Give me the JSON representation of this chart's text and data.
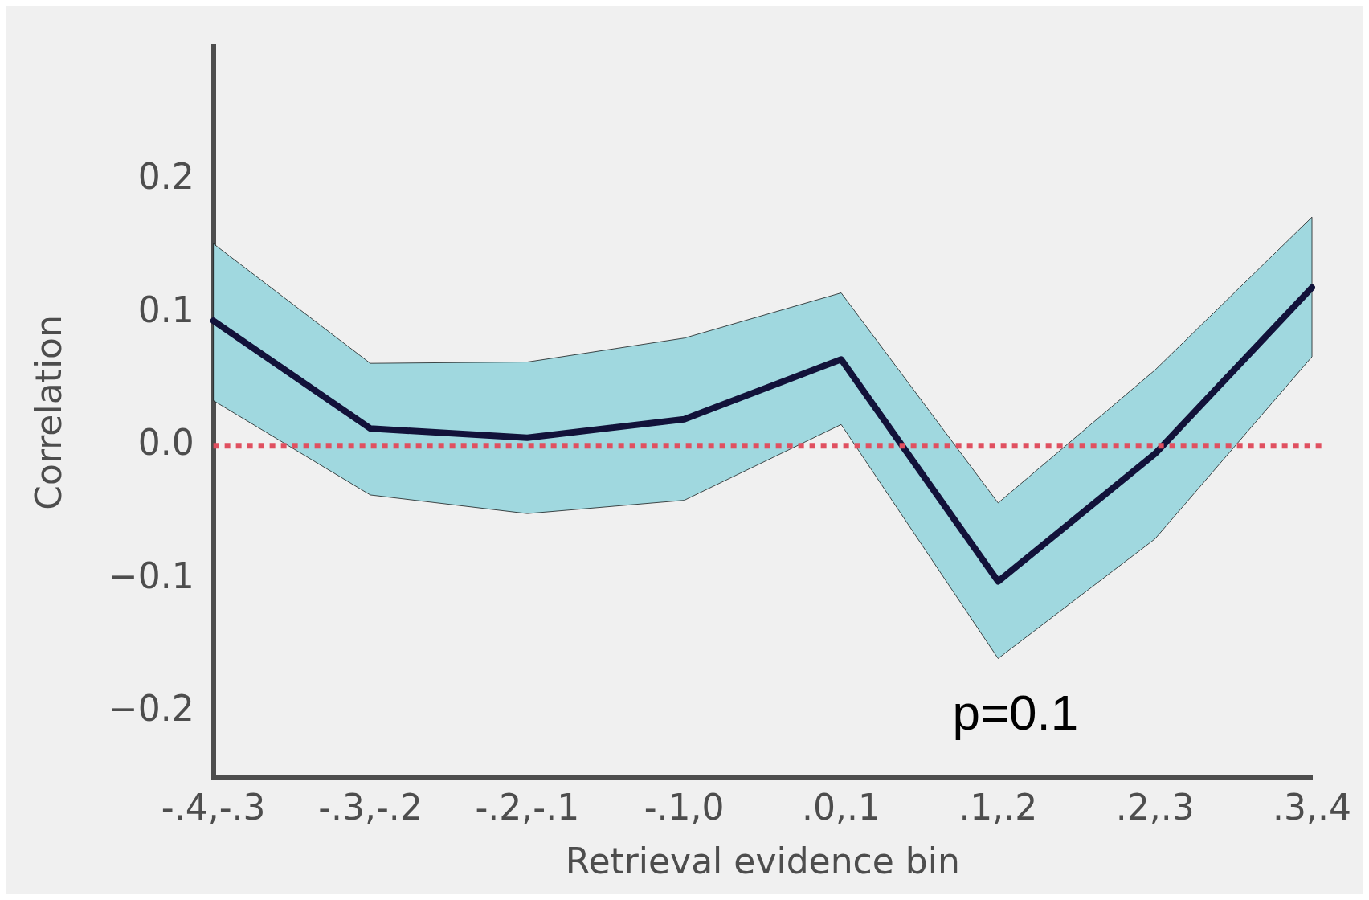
{
  "chart_data": {
    "type": "line",
    "xlabel": "Retrieval evidence bin",
    "ylabel": "Correlation",
    "categories": [
      "-.4,-.3",
      "-.3,-.2",
      "-.2,-.1",
      "-.1,0",
      ".0,.1",
      ".1,.2",
      ".2,.3",
      ".3,.4"
    ],
    "series": [
      {
        "color": "#12123a",
        "values": [
          0.094,
          0.013,
          0.006,
          0.02,
          0.065,
          -0.102,
          -0.006,
          0.119
        ],
        "lower": [
          0.034,
          -0.037,
          -0.051,
          -0.041,
          0.016,
          -0.16,
          -0.07,
          0.067
        ],
        "upper": [
          0.152,
          0.062,
          0.063,
          0.081,
          0.115,
          -0.043,
          0.057,
          0.172
        ]
      }
    ],
    "ylim": [
      -0.25,
      0.3
    ],
    "yticks": [
      {
        "value": -0.2,
        "label": "−0.2"
      },
      {
        "value": -0.1,
        "label": "−0.1"
      },
      {
        "value": 0,
        "label": "0.0"
      },
      {
        "value": 0.1,
        "label": "0.1"
      },
      {
        "value": 0.2,
        "label": "0.2"
      }
    ],
    "ref_lines": [
      {
        "axis": "y",
        "value": 0,
        "color": "#e05060",
        "line_style": "dotted"
      }
    ],
    "annotations": [
      "p=0.1"
    ],
    "grid": false,
    "legend": false,
    "marker": "none"
  }
}
